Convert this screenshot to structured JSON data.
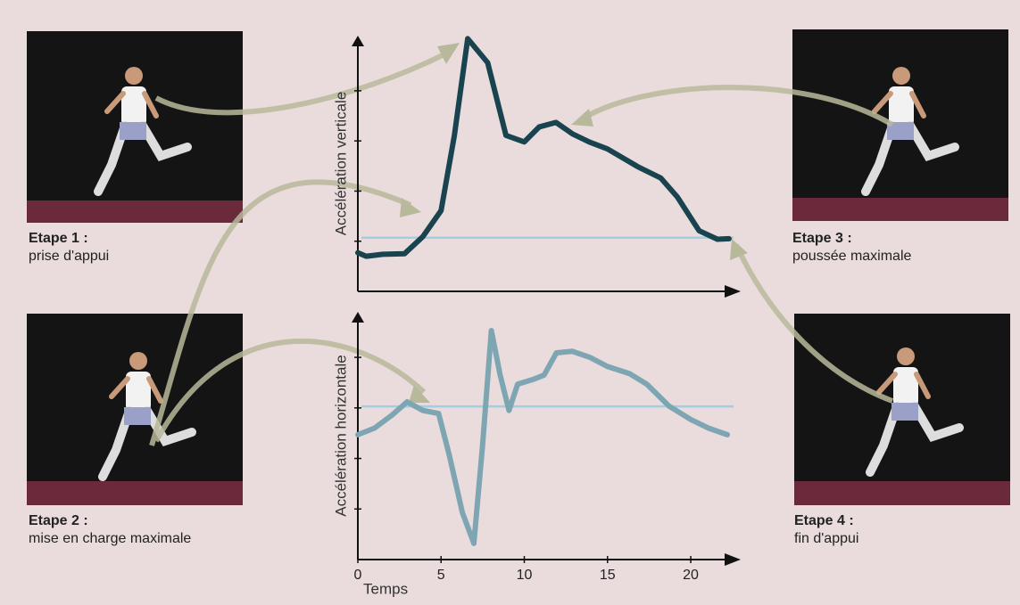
{
  "chart_data": [
    {
      "type": "line",
      "ylabel": "Accélération verticale",
      "x": [
        0,
        0.5,
        1.5,
        2.8,
        3.9,
        5.0,
        5.8,
        6.6,
        7.8,
        8.9,
        10.0,
        10.9,
        11.9,
        12.9,
        13.9,
        15.0,
        16.8,
        18.2,
        19.2,
        20.5,
        21.6,
        22.3
      ],
      "series": [
        {
          "color": "#18434f",
          "values": [
            0.77,
            0.7,
            0.74,
            0.75,
            1.09,
            1.61,
            3.11,
            5.04,
            4.56,
            3.11,
            2.98,
            3.28,
            3.37,
            3.14,
            2.98,
            2.84,
            2.49,
            2.26,
            1.88,
            1.21,
            1.04,
            1.05
          ]
        }
      ],
      "reference_line": 1.07,
      "reference_color": "#9fcfe0",
      "xlim": [
        0,
        23
      ],
      "ylim": [
        0,
        5.1
      ],
      "yticks": [
        1,
        2,
        3,
        4
      ]
    },
    {
      "type": "line",
      "ylabel": "Accélération horizontale",
      "xlabel": "Temps",
      "x": [
        0,
        1.0,
        2.06,
        2.96,
        3.9,
        4.85,
        5.49,
        6.28,
        6.97,
        7.49,
        8.02,
        8.55,
        9.08,
        9.6,
        10.5,
        11.19,
        11.93,
        12.88,
        13.94,
        14.99,
        16.31,
        17.36,
        18.68,
        20.0,
        21.06,
        22.2
      ],
      "series": [
        {
          "color": "#7ea6b2",
          "values": [
            2.47,
            2.6,
            2.86,
            3.12,
            2.95,
            2.89,
            2.07,
            0.93,
            0.32,
            2.25,
            4.53,
            3.65,
            2.95,
            3.47,
            3.56,
            3.65,
            4.09,
            4.12,
            4.0,
            3.82,
            3.68,
            3.47,
            3.04,
            2.77,
            2.6,
            2.47
          ]
        }
      ],
      "reference_line": 3.03,
      "reference_color": "#9fcfe0",
      "xlim": [
        0,
        23
      ],
      "ylim": [
        0,
        4.9
      ],
      "xticks": [
        0,
        5,
        10,
        15,
        20
      ],
      "yticks": [
        1,
        2,
        3,
        4
      ]
    }
  ],
  "stages": [
    {
      "title": "Etape 1 :",
      "caption": "prise d'appui"
    },
    {
      "title": "Etape 2 :",
      "caption": "mise en charge maximale"
    },
    {
      "title": "Etape 3 :",
      "caption": "poussée maximale"
    },
    {
      "title": "Etape 4 :",
      "caption": "fin d'appui"
    }
  ]
}
